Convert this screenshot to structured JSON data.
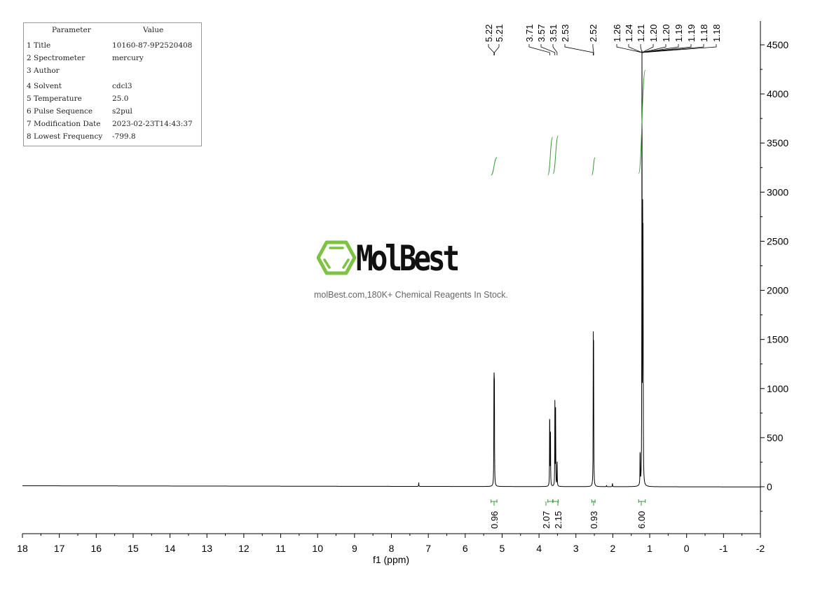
{
  "parameters": {
    "header": [
      "Parameter",
      "Value"
    ],
    "rows": [
      [
        "1 Title",
        "10160-87-9P2520408"
      ],
      [
        "2 Spectrometer",
        "mercury"
      ],
      [
        "3 Author",
        ""
      ],
      [
        "4 Solvent",
        "cdcl3"
      ],
      [
        "5 Temperature",
        "25.0"
      ],
      [
        "6 Pulse Sequence",
        "s2pul"
      ],
      [
        "7 Modification Date",
        "2023-02-23T14:43:37"
      ],
      [
        "8 Lowest Frequency",
        "-799.8"
      ]
    ]
  },
  "watermark": {
    "brand": "MolBest",
    "slogan": "molBest.com,180K+ Chemical Reagents In Stock.",
    "brand_color": "#7dc242"
  },
  "chart_data": {
    "type": "line",
    "xlabel": "f1 (ppm)",
    "ylabel": "",
    "xlim": [
      18,
      -2
    ],
    "ylim": [
      -500,
      4750
    ],
    "x_ticks": [
      18,
      17,
      16,
      15,
      14,
      13,
      12,
      11,
      10,
      9,
      8,
      7,
      6,
      5,
      4,
      3,
      2,
      1,
      0,
      -1,
      -2
    ],
    "x_tick_labels": [
      "18",
      "17",
      "16",
      "15",
      "14",
      "13",
      "12",
      "11",
      "10",
      "9",
      "8",
      "7",
      "6",
      "5",
      "4",
      "3",
      "2",
      "1",
      "0",
      "-1",
      "-2"
    ],
    "y_ticks": [
      0,
      500,
      1000,
      1500,
      2000,
      2500,
      3000,
      3500,
      4000,
      4500
    ],
    "y_tick_labels": [
      "0",
      "500",
      "1000",
      "1500",
      "2000",
      "2500",
      "3000",
      "3500",
      "4000",
      "4500"
    ],
    "y_axis_side": "right",
    "line_color": "#000000",
    "integral_color": "#3a9a3a",
    "peaks": [
      {
        "ppm": 7.26,
        "intensity": 40
      },
      {
        "ppm": 5.22,
        "intensity": 1250
      },
      {
        "ppm": 5.21,
        "intensity": 1200
      },
      {
        "ppm": 3.71,
        "intensity": 880
      },
      {
        "ppm": 3.69,
        "intensity": 600
      },
      {
        "ppm": 3.57,
        "intensity": 850
      },
      {
        "ppm": 3.55,
        "intensity": 800
      },
      {
        "ppm": 3.51,
        "intensity": 300
      },
      {
        "ppm": 2.53,
        "intensity": 1400
      },
      {
        "ppm": 2.52,
        "intensity": 1300
      },
      {
        "ppm": 2.17,
        "intensity": 15
      },
      {
        "ppm": 2.01,
        "intensity": 40
      },
      {
        "ppm": 1.26,
        "intensity": 400
      },
      {
        "ppm": 1.21,
        "intensity": 4300
      },
      {
        "ppm": 1.19,
        "intensity": 2580
      },
      {
        "ppm": 1.18,
        "intensity": 2400
      }
    ],
    "peak_labels": [
      "5.22",
      "5.21",
      "3.71",
      "3.57",
      "3.51",
      "2.53",
      "2.52",
      "1.26",
      "1.24",
      "1.21",
      "1.20",
      "1.20",
      "1.19",
      "1.19",
      "1.18",
      "1.18"
    ],
    "integrals": [
      {
        "ppm_from": 5.3,
        "ppm_to": 5.14,
        "value": "0.96"
      },
      {
        "ppm_from": 3.76,
        "ppm_to": 3.63,
        "value": "2.07"
      },
      {
        "ppm_from": 3.62,
        "ppm_to": 3.48,
        "value": "2.15"
      },
      {
        "ppm_from": 2.57,
        "ppm_to": 2.48,
        "value": "0.93"
      },
      {
        "ppm_from": 1.3,
        "ppm_to": 1.12,
        "value": "6.00"
      }
    ]
  }
}
